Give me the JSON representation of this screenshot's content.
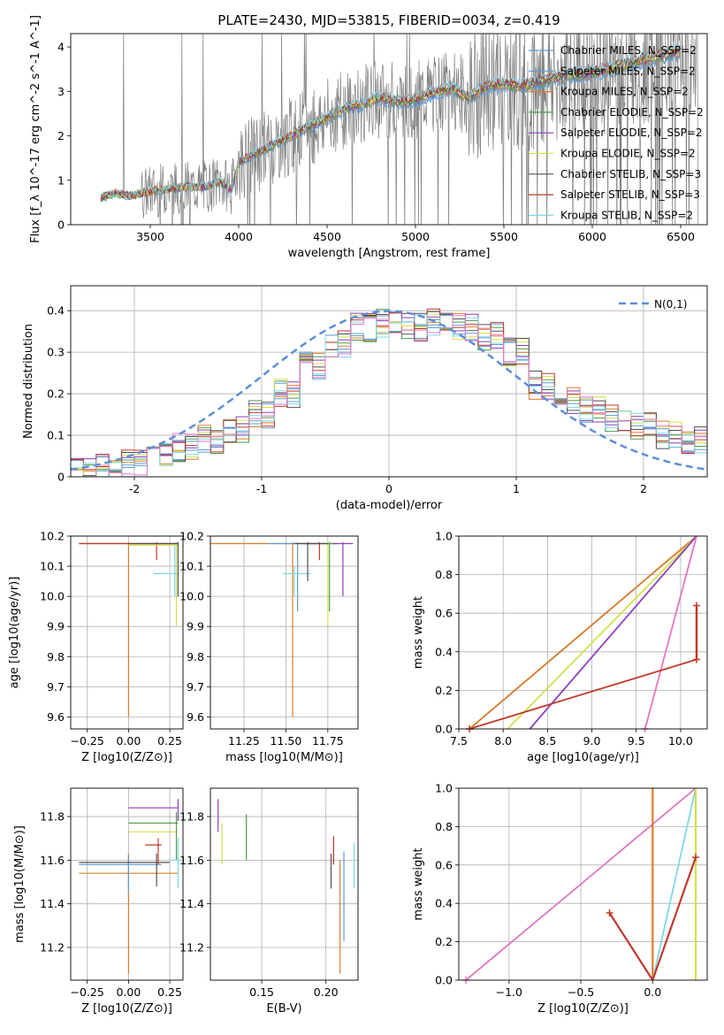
{
  "chart_data": [
    {
      "type": "line",
      "panel": "spectrum",
      "title": "PLATE=2430, MJD=53815, FIBERID=0034, z=0.419",
      "xlabel": "wavelength [Angstrom, rest frame]",
      "ylabel": "Flux [f_λ 10^-17 erg cm^-2 s^-1 A^-1]",
      "xlim": [
        3050,
        6650
      ],
      "ylim": [
        0,
        4.3
      ],
      "xticks": [
        3500,
        4000,
        4500,
        5000,
        5500,
        6000,
        6500
      ],
      "yticks": [
        0,
        1,
        2,
        3,
        4
      ],
      "legend_position": "top-right",
      "data_color": "#808080",
      "series": [
        {
          "name": "Chabrier MILES, N_SSP=2",
          "color": "#5b9bd5"
        },
        {
          "name": "Salpeter MILES, N_SSP=2",
          "color": "#5b9bd5"
        },
        {
          "name": "Kroupa MILES, N_SSP=2",
          "color": "#e07b28"
        },
        {
          "name": "Chabrier ELODIE, N_SSP=2",
          "color": "#4c9e4c"
        },
        {
          "name": "Salpeter ELODIE, N_SSP=2",
          "color": "#8e3fbf"
        },
        {
          "name": "Kroupa ELODIE, N_SSP=2",
          "color": "#d4e04a"
        },
        {
          "name": "Chabrier STELIB, N_SSP=3",
          "color": "#505050"
        },
        {
          "name": "Salpeter STELIB, N_SSP=3",
          "color": "#c0392b"
        },
        {
          "name": "Kroupa STELIB, N_SSP=2",
          "color": "#7fd8e8"
        }
      ],
      "model_profile": {
        "x": [
          3220,
          3300,
          3400,
          3500,
          3600,
          3700,
          3800,
          3900,
          3960,
          4000,
          4100,
          4200,
          4300,
          4400,
          4500,
          4600,
          4700,
          4800,
          4900,
          5000,
          5100,
          5200,
          5300,
          5400,
          5500,
          5600,
          5700,
          5800,
          5900,
          6000,
          6100,
          6200,
          6300,
          6400,
          6500
        ],
        "y": [
          0.6,
          0.7,
          0.65,
          0.75,
          0.8,
          0.85,
          0.85,
          0.95,
          0.8,
          1.4,
          1.6,
          1.8,
          2.0,
          2.2,
          2.4,
          2.6,
          2.7,
          2.85,
          2.75,
          2.8,
          2.95,
          3.05,
          2.85,
          3.1,
          3.15,
          3.1,
          3.2,
          3.3,
          3.35,
          3.4,
          3.5,
          3.6,
          3.7,
          3.8,
          3.9
        ]
      }
    },
    {
      "type": "line",
      "panel": "residual-distribution",
      "xlabel": "(data-model)/error",
      "ylabel": "Normed distribution",
      "xlim": [
        -2.5,
        2.5
      ],
      "ylim": [
        0,
        0.46
      ],
      "xticks": [
        -2,
        -1,
        0,
        1,
        2
      ],
      "yticks": [
        0.0,
        0.1,
        0.2,
        0.3,
        0.4
      ],
      "legend_position": "top-right",
      "reference_curve": {
        "name": "N(0,1)",
        "color": "#5b8fd6",
        "style": "dashed"
      },
      "histogram_bins": {
        "x": [
          -2.5,
          -2.3,
          -2.1,
          -1.9,
          -1.7,
          -1.5,
          -1.3,
          -1.1,
          -0.9,
          -0.7,
          -0.5,
          -0.3,
          -0.1,
          0.1,
          0.3,
          0.5,
          0.7,
          0.9,
          1.1,
          1.3,
          1.5,
          1.7,
          1.9,
          2.1,
          2.3
        ],
        "y": [
          0.01,
          0.02,
          0.03,
          0.05,
          0.07,
          0.09,
          0.11,
          0.15,
          0.2,
          0.27,
          0.32,
          0.36,
          0.37,
          0.36,
          0.37,
          0.36,
          0.34,
          0.3,
          0.22,
          0.18,
          0.16,
          0.14,
          0.12,
          0.1,
          0.09
        ]
      }
    },
    {
      "type": "scatter",
      "panel": "age-vs-metallicity",
      "xlabel": "Z [log10(Z/Z⊙)]",
      "ylabel": "age [log10(age/yr)]",
      "xlim": [
        -0.35,
        0.33
      ],
      "ylim": [
        9.56,
        10.2
      ],
      "xticks": [
        -0.25,
        0.0,
        0.25
      ],
      "yticks": [
        9.6,
        9.7,
        9.8,
        9.9,
        10.0,
        10.1,
        10.2
      ],
      "xtick_labels": [
        "−0.25",
        "0.00",
        "0.25"
      ],
      "ytick_labels": [
        "9.6",
        "9.7",
        "9.8",
        "9.9",
        "10.0",
        "10.1",
        "10.2"
      ]
    },
    {
      "type": "scatter",
      "panel": "age-vs-mass",
      "xlabel": "mass [log10(M/M⊙)]",
      "xlim": [
        11.05,
        11.93
      ],
      "ylim": [
        9.56,
        10.2
      ],
      "xticks": [
        11.25,
        11.5,
        11.75
      ],
      "yticks": [
        9.6,
        9.7,
        9.8,
        9.9,
        10.0,
        10.1,
        10.2
      ],
      "xtick_labels": [
        "11.25",
        "11.50",
        "11.75"
      ],
      "ytick_labels": [
        "9.6",
        "9.7",
        "9.8",
        "9.9",
        "10.0",
        "10.1",
        "10.2"
      ]
    },
    {
      "type": "line",
      "panel": "massweight-vs-age",
      "xlabel": "age [log10(age/yr)]",
      "ylabel": "mass weight",
      "xlim": [
        7.5,
        10.3
      ],
      "ylim": [
        0,
        1
      ],
      "xticks": [
        7.5,
        8.0,
        8.5,
        9.0,
        9.5,
        10.0
      ],
      "yticks": [
        0.0,
        0.2,
        0.4,
        0.6,
        0.8,
        1.0
      ],
      "xtick_labels": [
        "7.5",
        "8.0",
        "8.5",
        "9.0",
        "9.5",
        "10.0"
      ],
      "ytick_labels": [
        "0.0",
        "0.2",
        "0.4",
        "0.6",
        "0.8",
        "1.0"
      ]
    },
    {
      "type": "scatter",
      "panel": "mass-vs-metallicity",
      "xlabel": "Z [log10(Z/Z⊙)]",
      "ylabel": "mass [log10(M/M⊙)]",
      "xlim": [
        -0.35,
        0.33
      ],
      "ylim": [
        11.05,
        11.93
      ],
      "xticks": [
        -0.25,
        0.0,
        0.25
      ],
      "yticks": [
        11.2,
        11.4,
        11.6,
        11.8
      ],
      "xtick_labels": [
        "−0.25",
        "0.00",
        "0.25"
      ],
      "ytick_labels": [
        "11.2",
        "11.4",
        "11.6",
        "11.8"
      ]
    },
    {
      "type": "scatter",
      "panel": "mass-vs-ebv",
      "xlabel": "E(B-V)",
      "xlim": [
        0.11,
        0.225
      ],
      "ylim": [
        11.05,
        11.93
      ],
      "xticks": [
        0.15,
        0.2
      ],
      "yticks": [
        11.2,
        11.4,
        11.6,
        11.8
      ],
      "xtick_labels": [
        "0.15",
        "0.20"
      ],
      "ytick_labels": [
        "11.2",
        "11.4",
        "11.6",
        "11.8"
      ]
    },
    {
      "type": "line",
      "panel": "massweight-vs-metallicity",
      "xlabel": "Z [log10(Z/Z⊙)]",
      "ylabel": "mass weight",
      "xlim": [
        -1.35,
        0.38
      ],
      "ylim": [
        0,
        1
      ],
      "xticks": [
        -1.0,
        -0.5,
        0.0
      ],
      "yticks": [
        0.0,
        0.2,
        0.4,
        0.6,
        0.8,
        1.0
      ],
      "xtick_labels": [
        "−1.0",
        "−0.5",
        "0.0"
      ],
      "ytick_labels": [
        "0.0",
        "0.2",
        "0.4",
        "0.6",
        "0.8",
        "1.0"
      ]
    }
  ]
}
